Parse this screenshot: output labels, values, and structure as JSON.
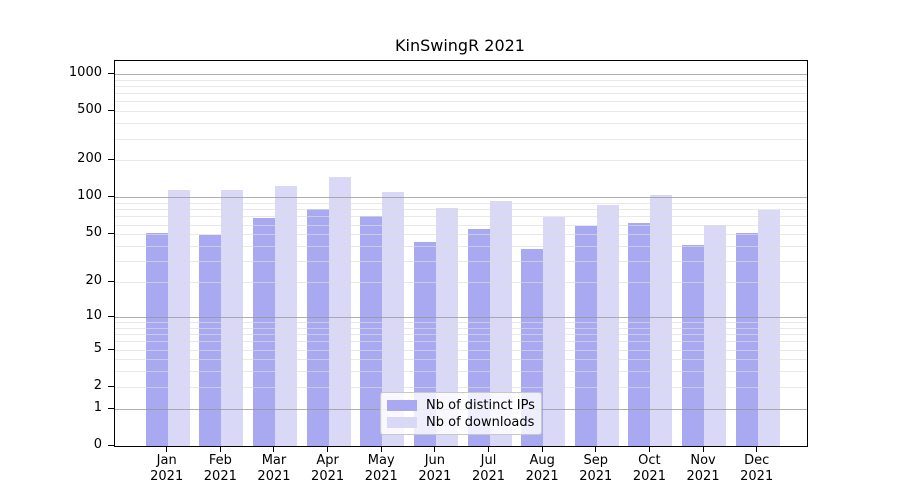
{
  "title": "KinSwingR 2021",
  "chart_data": {
    "type": "bar",
    "title": "KinSwingR 2021",
    "categories": [
      "Jan 2021",
      "Feb 2021",
      "Mar 2021",
      "Apr 2021",
      "May 2021",
      "Jun 2021",
      "Jul 2021",
      "Aug 2021",
      "Sep 2021",
      "Oct 2021",
      "Nov 2021",
      "Dec 2021"
    ],
    "x_axis": {
      "months": [
        "Jan",
        "Feb",
        "Mar",
        "Apr",
        "May",
        "Jun",
        "Jul",
        "Aug",
        "Sep",
        "Oct",
        "Nov",
        "Dec"
      ],
      "year_label": "2021"
    },
    "series": [
      {
        "name": "Nb of distinct IPs",
        "color": "#a9a9f1",
        "values": [
          51,
          49,
          68,
          81,
          70,
          43,
          55,
          38,
          58,
          62,
          41,
          51
        ]
      },
      {
        "name": "Nb of downloads",
        "color": "#d9d9f7",
        "values": [
          114,
          114,
          124,
          147,
          111,
          82,
          93,
          69,
          87,
          104,
          60,
          79
        ]
      }
    ],
    "y_axis": {
      "tick_values": [
        0,
        1,
        2,
        5,
        10,
        20,
        50,
        100,
        200,
        500,
        1000
      ],
      "scale": "log10(value+1)",
      "range": [
        0,
        1200
      ]
    },
    "grid": {
      "horizontal": true,
      "major_values": [
        1,
        10,
        100,
        1000
      ],
      "minor_pattern": "2-9 per decade",
      "legend_position": "bottom-center"
    }
  },
  "colors": {
    "ips_bar": "#a9a9f1",
    "downloads_bar": "#d9d9f7",
    "major_grid": "#b0b0b0",
    "minor_grid": "#e4e4e4",
    "axis": "#000000",
    "legend_border": "#c8c8c8",
    "background": "#ffffff"
  }
}
